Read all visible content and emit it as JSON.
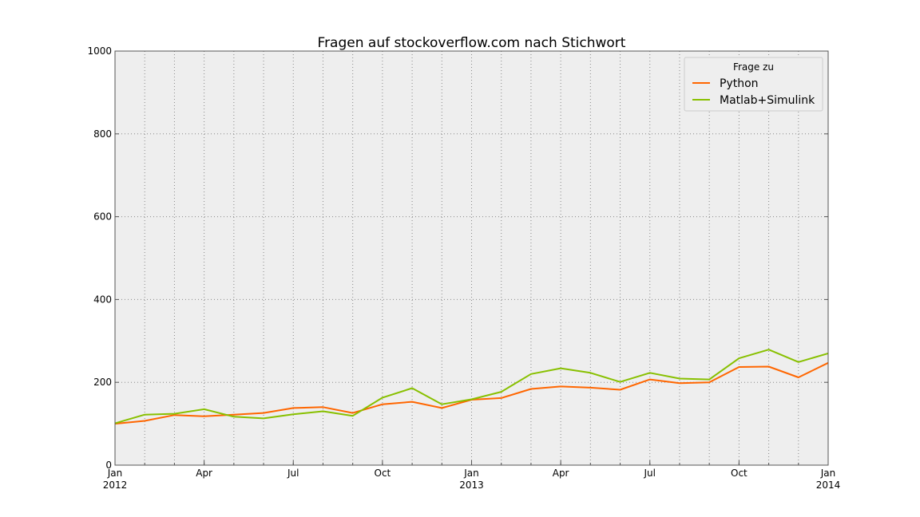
{
  "chart_data": {
    "type": "line",
    "title": "Fragen auf stockoverflow.com nach Stichwort",
    "xlabel": "",
    "ylabel": "",
    "x": [
      "2012-01",
      "2012-02",
      "2012-03",
      "2012-04",
      "2012-05",
      "2012-06",
      "2012-07",
      "2012-08",
      "2012-09",
      "2012-10",
      "2012-11",
      "2012-12",
      "2013-01",
      "2013-02",
      "2013-03",
      "2013-04",
      "2013-05",
      "2013-06",
      "2013-07",
      "2013-08",
      "2013-09",
      "2013-10",
      "2013-11",
      "2013-12",
      "2014-01"
    ],
    "xlim": [
      "2012-01",
      "2014-01"
    ],
    "ylim": [
      0,
      1000
    ],
    "y_ticks": [
      "0",
      "200",
      "400",
      "600",
      "800",
      "1000"
    ],
    "x_ticks": [
      {
        "x": "2012-01",
        "label": "Jan",
        "sub": "2012"
      },
      {
        "x": "2012-04",
        "label": "Apr",
        "sub": ""
      },
      {
        "x": "2012-07",
        "label": "Jul",
        "sub": ""
      },
      {
        "x": "2012-10",
        "label": "Oct",
        "sub": ""
      },
      {
        "x": "2013-01",
        "label": "Jan",
        "sub": "2013"
      },
      {
        "x": "2013-04",
        "label": "Apr",
        "sub": ""
      },
      {
        "x": "2013-07",
        "label": "Jul",
        "sub": ""
      },
      {
        "x": "2013-10",
        "label": "Oct",
        "sub": ""
      },
      {
        "x": "2014-01",
        "label": "Jan",
        "sub": "2014"
      }
    ],
    "grid": true,
    "legend": {
      "title": "Frage zu",
      "position": "top-right"
    },
    "series": [
      {
        "name": "Python",
        "color": "#ff6600",
        "values": [
          100,
          107,
          121,
          118,
          122,
          126,
          138,
          140,
          126,
          147,
          153,
          138,
          158,
          162,
          184,
          190,
          187,
          182,
          207,
          198,
          200,
          237,
          238,
          212,
          247
        ]
      },
      {
        "name": "Matlab+Simulink",
        "color": "#88c000",
        "values": [
          101,
          122,
          124,
          135,
          117,
          113,
          123,
          130,
          119,
          163,
          186,
          147,
          159,
          177,
          220,
          234,
          223,
          201,
          223,
          209,
          207,
          258,
          279,
          249,
          270
        ]
      }
    ],
    "background": "#eeeeee"
  }
}
